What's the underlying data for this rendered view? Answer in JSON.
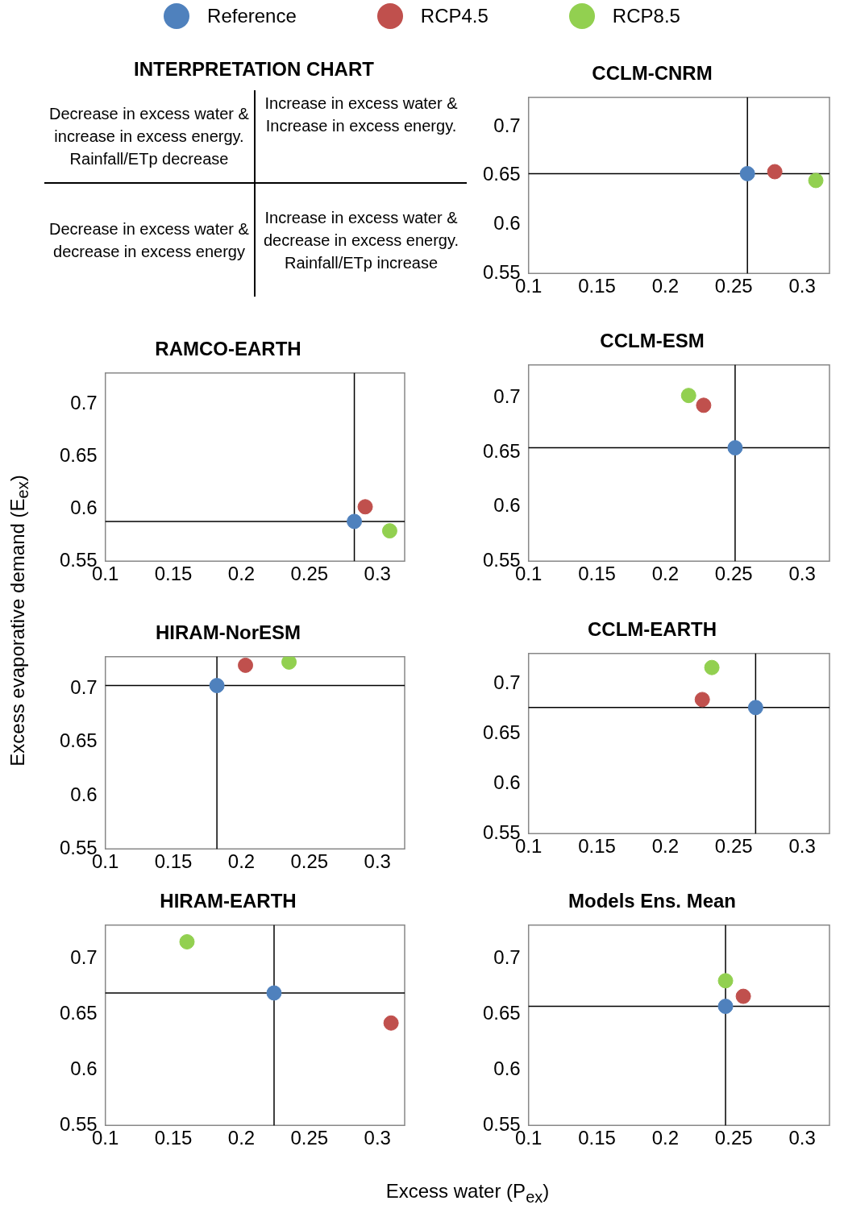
{
  "chart_data": [
    {
      "type": "other",
      "title": "INTERPRETATION CHART",
      "annotations": [
        "Decrease in excess water & increase in excess energy. Rainfall/ETp decrease",
        "Increase in excess water & Increase in excess energy.",
        "Decrease in excess water & decrease in excess energy",
        "Increase in excess water & decrease in excess energy. Rainfall/ETp increase"
      ]
    },
    {
      "type": "scatter",
      "title": "CCLM-CNRM",
      "legend": "top",
      "marker": "circle",
      "xlim": [
        0.1,
        0.32
      ],
      "xticks": [
        0.1,
        0.15,
        0.2,
        0.25,
        0.3
      ],
      "ylim": [
        0.55,
        0.73
      ],
      "yticks": [
        0.55,
        0.6,
        0.65,
        0.7
      ],
      "ref_lines": [
        {
          "axis": "x",
          "value": 0.26
        },
        {
          "axis": "y",
          "value": 0.652
        }
      ],
      "series": [
        {
          "name": "Reference",
          "color": "#4f81bd",
          "x": [
            0.26
          ],
          "values": [
            0.652
          ]
        },
        {
          "name": "RCP4.5",
          "color": "#c0504d",
          "x": [
            0.28
          ],
          "values": [
            0.654
          ]
        },
        {
          "name": "RCP8.5",
          "color": "#92d050",
          "x": [
            0.31
          ],
          "values": [
            0.645
          ]
        }
      ]
    },
    {
      "type": "scatter",
      "title": "RAMCO-EARTH",
      "marker": "circle",
      "xlim": [
        0.1,
        0.32
      ],
      "xticks": [
        0.1,
        0.15,
        0.2,
        0.25,
        0.3
      ],
      "ylim": [
        0.55,
        0.73
      ],
      "yticks": [
        0.55,
        0.6,
        0.65,
        0.7
      ],
      "ref_lines": [
        {
          "axis": "x",
          "value": 0.283
        },
        {
          "axis": "y",
          "value": 0.588
        }
      ],
      "series": [
        {
          "color": "#4f81bd",
          "x": [
            0.283
          ],
          "values": [
            0.588
          ]
        },
        {
          "color": "#c0504d",
          "x": [
            0.291
          ],
          "values": [
            0.602
          ]
        },
        {
          "color": "#92d050",
          "x": [
            0.309
          ],
          "values": [
            0.579
          ]
        }
      ]
    },
    {
      "type": "scatter",
      "title": "CCLM-ESM",
      "marker": "circle",
      "xlim": [
        0.1,
        0.32
      ],
      "xticks": [
        0.1,
        0.15,
        0.2,
        0.25,
        0.3
      ],
      "ylim": [
        0.55,
        0.73
      ],
      "yticks": [
        0.55,
        0.6,
        0.65,
        0.7
      ],
      "ref_lines": [
        {
          "axis": "x",
          "value": 0.251
        },
        {
          "axis": "y",
          "value": 0.654
        }
      ],
      "series": [
        {
          "color": "#4f81bd",
          "x": [
            0.251
          ],
          "values": [
            0.654
          ]
        },
        {
          "color": "#c0504d",
          "x": [
            0.228
          ],
          "values": [
            0.693
          ]
        },
        {
          "color": "#92d050",
          "x": [
            0.217
          ],
          "values": [
            0.702
          ]
        }
      ]
    },
    {
      "type": "scatter",
      "title": "HIRAM-NorESM",
      "ylabel": "Excess evaporative demand (E$_{ex}$)",
      "marker": "circle",
      "xlim": [
        0.1,
        0.32
      ],
      "xticks": [
        0.1,
        0.15,
        0.2,
        0.25,
        0.3
      ],
      "ylim": [
        0.55,
        0.73
      ],
      "yticks": [
        0.55,
        0.6,
        0.65,
        0.7
      ],
      "ref_lines": [
        {
          "axis": "x",
          "value": 0.182
        },
        {
          "axis": "y",
          "value": 0.703
        }
      ],
      "series": [
        {
          "color": "#4f81bd",
          "x": [
            0.182
          ],
          "values": [
            0.703
          ]
        },
        {
          "color": "#c0504d",
          "x": [
            0.203
          ],
          "values": [
            0.722
          ]
        },
        {
          "color": "#92d050",
          "x": [
            0.235
          ],
          "values": [
            0.725
          ]
        }
      ]
    },
    {
      "type": "scatter",
      "title": "CCLM-EARTH",
      "marker": "circle",
      "xlim": [
        0.1,
        0.32
      ],
      "xticks": [
        0.1,
        0.15,
        0.2,
        0.25,
        0.3
      ],
      "ylim": [
        0.55,
        0.73
      ],
      "yticks": [
        0.55,
        0.6,
        0.65,
        0.7
      ],
      "ref_lines": [
        {
          "axis": "x",
          "value": 0.266
        },
        {
          "axis": "y",
          "value": 0.676
        }
      ],
      "series": [
        {
          "color": "#4f81bd",
          "x": [
            0.266
          ],
          "values": [
            0.676
          ]
        },
        {
          "color": "#c0504d",
          "x": [
            0.227
          ],
          "values": [
            0.684
          ]
        },
        {
          "color": "#92d050",
          "x": [
            0.234
          ],
          "values": [
            0.716
          ]
        }
      ]
    },
    {
      "type": "scatter",
      "title": "HIRAM-EARTH",
      "xlabel": "Excess water (P$_{ex}$)",
      "marker": "circle",
      "xlim": [
        0.1,
        0.32
      ],
      "xticks": [
        0.1,
        0.15,
        0.2,
        0.25,
        0.3
      ],
      "ylim": [
        0.55,
        0.73
      ],
      "yticks": [
        0.55,
        0.6,
        0.65,
        0.7
      ],
      "ref_lines": [
        {
          "axis": "x",
          "value": 0.224
        },
        {
          "axis": "y",
          "value": 0.669
        }
      ],
      "series": [
        {
          "color": "#4f81bd",
          "x": [
            0.224
          ],
          "values": [
            0.669
          ]
        },
        {
          "color": "#c0504d",
          "x": [
            0.31
          ],
          "values": [
            0.642
          ]
        },
        {
          "color": "#92d050",
          "x": [
            0.16
          ],
          "values": [
            0.715
          ]
        }
      ]
    },
    {
      "type": "scatter",
      "title": "Models Ens. Mean",
      "marker": "circle",
      "xlim": [
        0.1,
        0.32
      ],
      "xticks": [
        0.1,
        0.15,
        0.2,
        0.25,
        0.3
      ],
      "ylim": [
        0.55,
        0.73
      ],
      "yticks": [
        0.55,
        0.6,
        0.65,
        0.7
      ],
      "ref_lines": [
        {
          "axis": "x",
          "value": 0.244
        },
        {
          "axis": "y",
          "value": 0.657
        }
      ],
      "series": [
        {
          "color": "#4f81bd",
          "x": [
            0.244
          ],
          "values": [
            0.657
          ]
        },
        {
          "color": "#c0504d",
          "x": [
            0.257
          ],
          "values": [
            0.666
          ]
        },
        {
          "color": "#92d050",
          "x": [
            0.244
          ],
          "values": [
            0.68
          ]
        }
      ]
    }
  ]
}
